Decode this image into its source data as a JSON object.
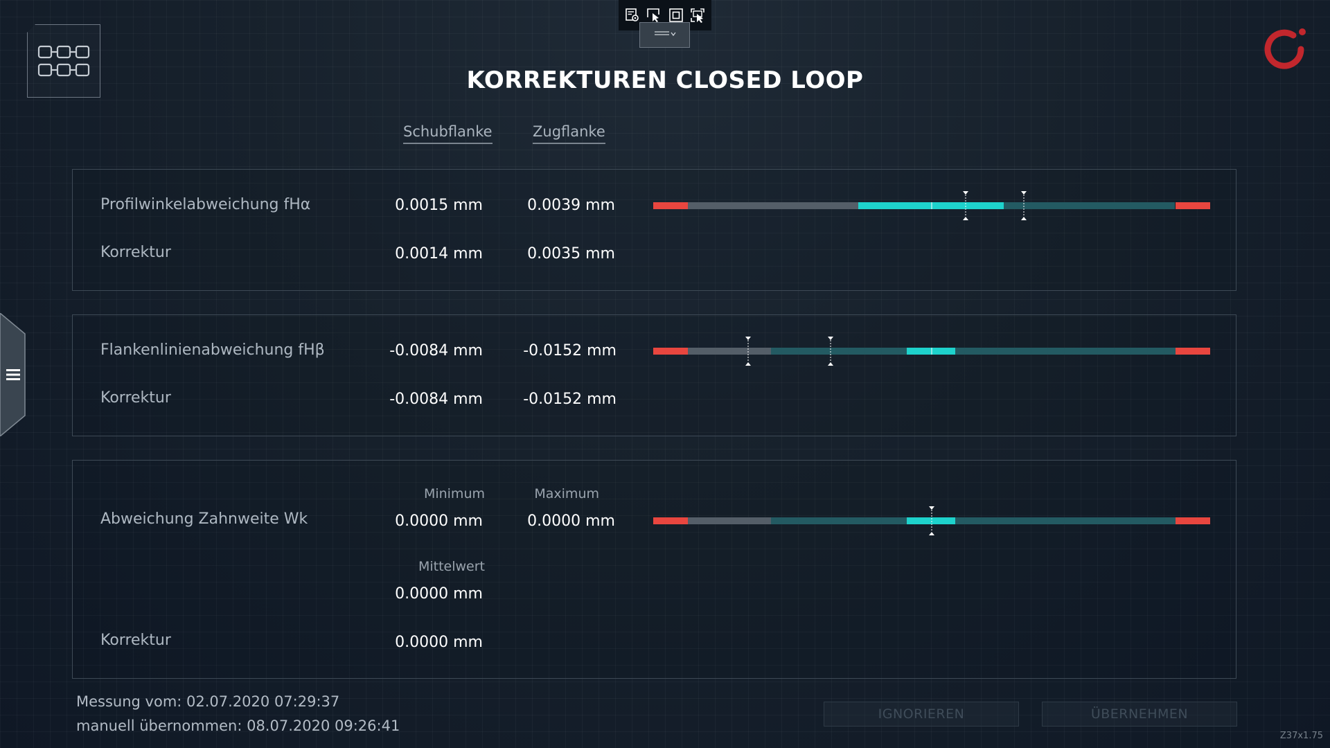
{
  "title": "KORREKTUREN CLOSED LOOP",
  "columns": {
    "left": "Schubflanke",
    "right": "Zugflanke"
  },
  "profil": {
    "label": "Profilwinkelabweichung fHα",
    "value_left": "0.0015 mm",
    "value_right": "0.0039 mm",
    "korrektur_label": "Korrektur",
    "korrektur_left": "0.0014 mm",
    "korrektur_right": "0.0035 mm"
  },
  "flanken": {
    "label": "Flankenlinienabweichung fHβ",
    "value_left": "-0.0084 mm",
    "value_right": "-0.0152 mm",
    "korrektur_label": "Korrektur",
    "korrektur_left": "-0.0084 mm",
    "korrektur_right": "-0.0152 mm"
  },
  "zahnweite": {
    "label": "Abweichung Zahnweite Wk",
    "min_label": "Minimum",
    "max_label": "Maximum",
    "min_value": "0.0000 mm",
    "max_value": "0.0000 mm",
    "mean_label": "Mittelwert",
    "mean_value": "0.0000 mm",
    "korrektur_label": "Korrektur",
    "korrektur_value": "0.0000 mm"
  },
  "footer": {
    "measure": "Messung vom: 02.07.2020   07:29:37",
    "manual": "manuell übernommen: 08.07.2020   09:26:41"
  },
  "buttons": {
    "ignore": "IGNORIEREN",
    "accept": "ÜBERNEHMEN"
  },
  "version": "Z37x1.75",
  "colors": {
    "tolerance_red": "#e8463f",
    "ok_cyan": "#1ed2cc",
    "track_teal": "#235a62",
    "track_gray": "#545e68"
  },
  "icons": {
    "app": "machine-grid-icon",
    "logo": "brand-logo-icon",
    "menu": "hamburger-menu-icon",
    "toolbar": [
      "settings-window-icon",
      "cursor-select-icon",
      "fullscreen-frame-icon",
      "zoom-select-icon"
    ]
  }
}
